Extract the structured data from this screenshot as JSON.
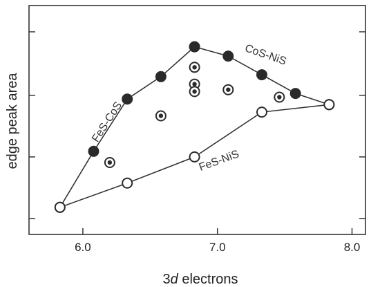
{
  "chart_data": {
    "type": "scatter",
    "xlabel_prefix": "3",
    "xlabel_italic": "d",
    "xlabel_suffix": " electrons",
    "ylabel": "edge peak area",
    "xlim": [
      5.6,
      8.1
    ],
    "ylim": [
      0.0,
      1.0
    ],
    "xticks": [
      6.0,
      7.0,
      8.0
    ],
    "xtick_labels": [
      "6.0",
      "7.0",
      "8.0"
    ],
    "yticks": [
      0.0,
      0.33,
      0.66,
      1.0
    ],
    "grid": false,
    "line_series": [
      {
        "name": "FeS-CoS",
        "marker": "filled",
        "points": [
          [
            5.83,
            0.06
          ],
          [
            6.08,
            0.36
          ],
          [
            6.33,
            0.64
          ],
          [
            6.58,
            0.76
          ],
          [
            6.83,
            0.92
          ]
        ]
      },
      {
        "name": "CoS-NiS",
        "marker": "filled",
        "points": [
          [
            6.83,
            0.92
          ],
          [
            7.08,
            0.87
          ],
          [
            7.33,
            0.77
          ],
          [
            7.58,
            0.67
          ],
          [
            7.83,
            0.61
          ]
        ]
      },
      {
        "name": "FeS-NiS",
        "marker": "open",
        "points": [
          [
            5.83,
            0.06
          ],
          [
            6.33,
            0.19
          ],
          [
            6.83,
            0.33
          ],
          [
            7.33,
            0.57
          ],
          [
            7.83,
            0.61
          ]
        ]
      }
    ],
    "ternary_points": {
      "marker": "ring-dot",
      "points": [
        [
          6.2,
          0.3
        ],
        [
          6.58,
          0.55
        ],
        [
          6.83,
          0.81
        ],
        [
          6.83,
          0.72
        ],
        [
          6.83,
          0.68
        ],
        [
          7.08,
          0.69
        ],
        [
          7.46,
          0.65
        ]
      ]
    }
  }
}
